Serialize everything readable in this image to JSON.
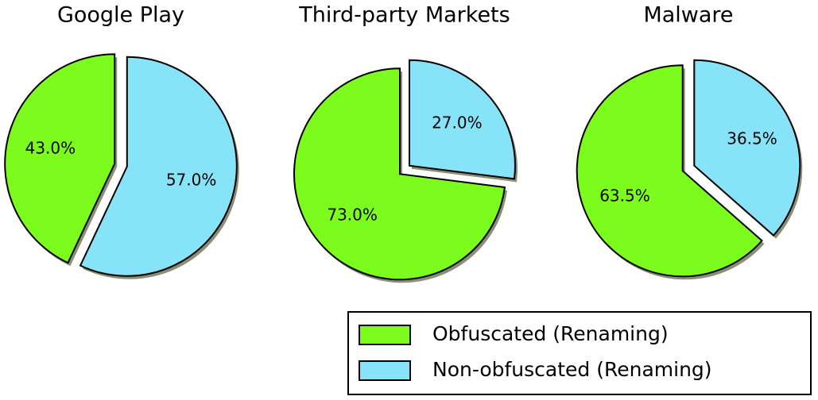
{
  "chart_data": [
    {
      "type": "pie",
      "title": "Google Play",
      "categories": [
        "Obfuscated (Renaming)",
        "Non-obfuscated (Renaming)"
      ],
      "values": [
        43.0,
        57.0
      ],
      "value_labels": [
        "43.0%",
        "57.0%"
      ],
      "colors": [
        "#7cfc1c",
        "#87e3f8"
      ]
    },
    {
      "type": "pie",
      "title": "Third-party Markets",
      "categories": [
        "Obfuscated (Renaming)",
        "Non-obfuscated (Renaming)"
      ],
      "values": [
        73.0,
        27.0
      ],
      "value_labels": [
        "73.0%",
        "27.0%"
      ],
      "colors": [
        "#7cfc1c",
        "#87e3f8"
      ]
    },
    {
      "type": "pie",
      "title": "Malware",
      "categories": [
        "Obfuscated (Renaming)",
        "Non-obfuscated (Renaming)"
      ],
      "values": [
        63.5,
        36.5
      ],
      "value_labels": [
        "63.5%",
        "36.5%"
      ],
      "colors": [
        "#7cfc1c",
        "#87e3f8"
      ]
    }
  ]
}
